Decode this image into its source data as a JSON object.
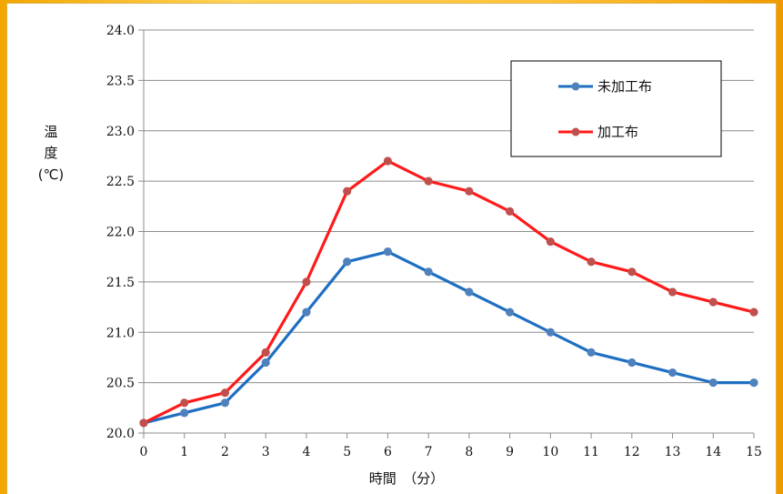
{
  "chart_data": {
    "type": "line",
    "title": "",
    "xlabel": "時間　（分）",
    "ylabel_lines": [
      "温",
      "度",
      "(℃)"
    ],
    "x": [
      0,
      1,
      2,
      3,
      4,
      5,
      6,
      7,
      8,
      9,
      10,
      11,
      12,
      13,
      14,
      15
    ],
    "x_tick_labels": [
      "0",
      "1",
      "2",
      "3",
      "4",
      "5",
      "6",
      "7",
      "8",
      "9",
      "10",
      "11",
      "12",
      "13",
      "14",
      "15"
    ],
    "y_tick_labels": [
      "20.0",
      "20.5",
      "21.0",
      "21.5",
      "22.0",
      "22.5",
      "23.0",
      "23.5",
      "24.0"
    ],
    "ylim": [
      20.0,
      24.0
    ],
    "xlim": [
      0,
      15
    ],
    "grid": "horizontal",
    "legend_position": "top-right",
    "series": [
      {
        "name": "未加工布",
        "color": "#1f6fc1",
        "marker_color": "#4f81bd",
        "values": [
          20.1,
          20.2,
          20.3,
          20.7,
          21.2,
          21.7,
          21.8,
          21.6,
          21.4,
          21.2,
          21.0,
          20.8,
          20.7,
          20.6,
          20.5,
          20.5
        ]
      },
      {
        "name": "加工布",
        "color": "#ff1a1a",
        "marker_color": "#c0504d",
        "values": [
          20.1,
          20.3,
          20.4,
          20.8,
          21.5,
          22.4,
          22.7,
          22.5,
          22.4,
          22.2,
          21.9,
          21.7,
          21.6,
          21.4,
          21.3,
          21.2
        ]
      }
    ]
  }
}
